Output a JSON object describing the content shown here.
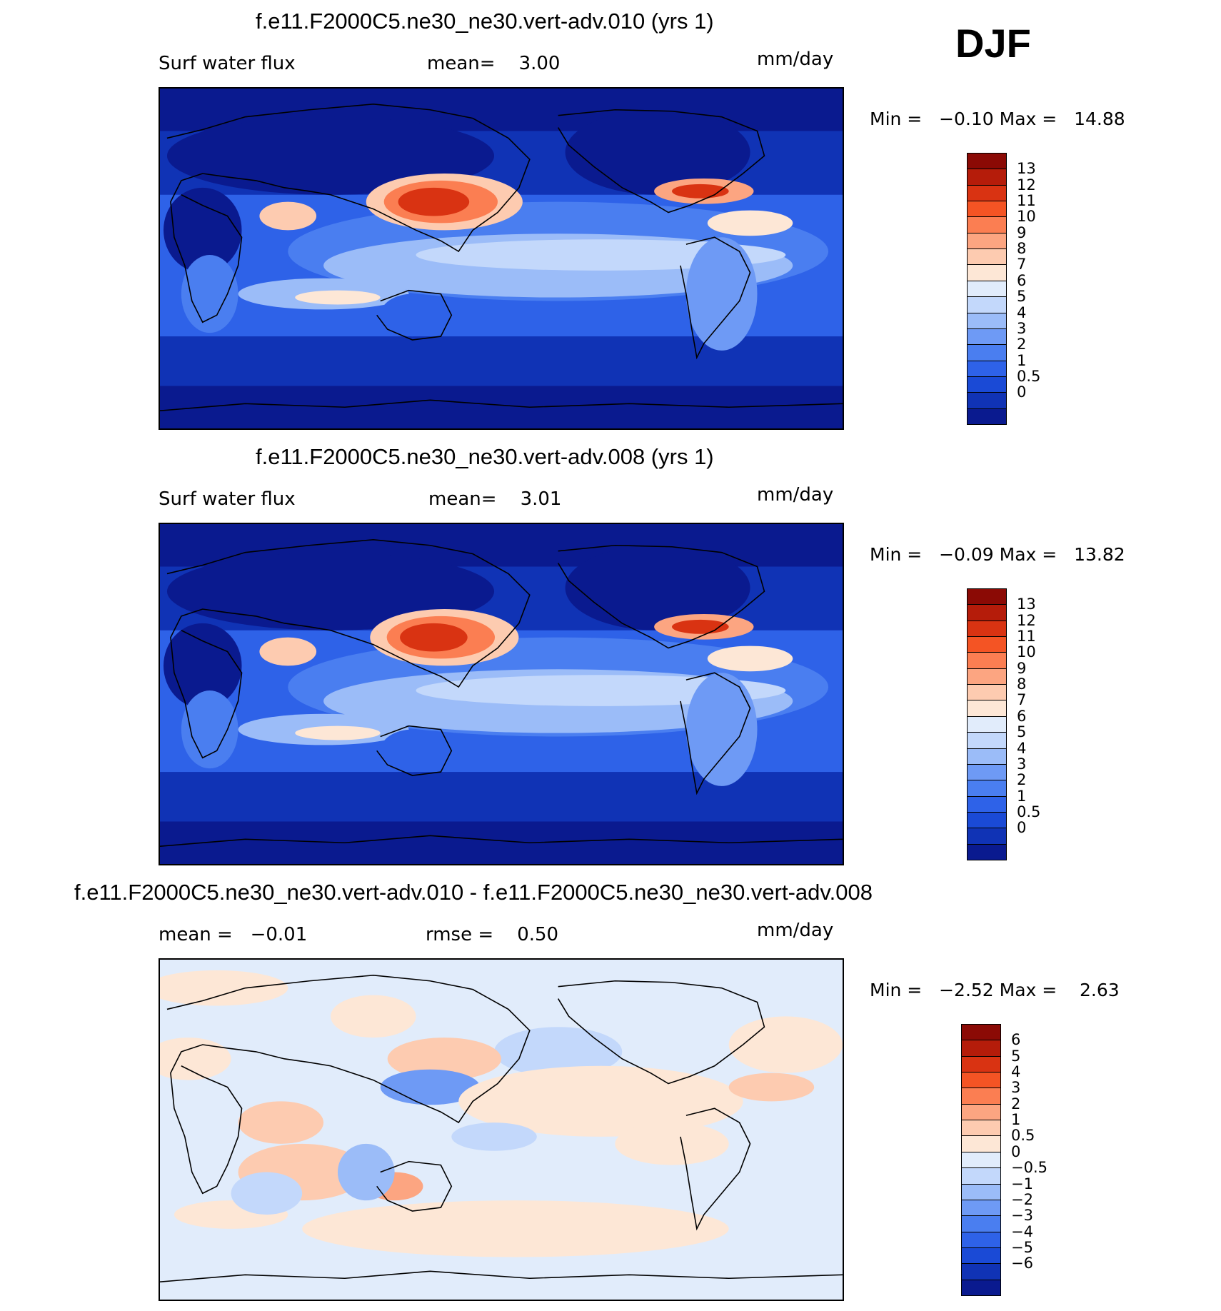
{
  "season": "DJF",
  "panels": [
    {
      "title": "f.e11.F2000C5.ne30_ne30.vert-adv.010 (yrs 1)",
      "left_text": "Surf water flux",
      "center_text": "mean=    3.00",
      "units": "mm/day",
      "minmax": "Min =   −0.10 Max =   14.88",
      "kind": "abs",
      "colorbar": {
        "colors": [
          "#0a1a8f",
          "#1033b5",
          "#1a4ad6",
          "#2e62e8",
          "#4a7ef0",
          "#6e9af5",
          "#9bbcf8",
          "#c3d8fb",
          "#e1ecfb",
          "#fde7d6",
          "#fdcbb0",
          "#fca581",
          "#fb7e52",
          "#f45424",
          "#d93312",
          "#b51c0a",
          "#8b0a05"
        ],
        "labels": [
          "13",
          "12",
          "11",
          "10",
          "9",
          "8",
          "7",
          "6",
          "5",
          "4",
          "3",
          "2",
          "1",
          "0.5",
          "0"
        ]
      }
    },
    {
      "title": "f.e11.F2000C5.ne30_ne30.vert-adv.008 (yrs 1)",
      "left_text": "Surf water flux",
      "center_text": "mean=    3.01",
      "units": "mm/day",
      "minmax": "Min =   −0.09 Max =   13.82",
      "kind": "abs",
      "colorbar": {
        "colors": [
          "#0a1a8f",
          "#1033b5",
          "#1a4ad6",
          "#2e62e8",
          "#4a7ef0",
          "#6e9af5",
          "#9bbcf8",
          "#c3d8fb",
          "#e1ecfb",
          "#fde7d6",
          "#fdcbb0",
          "#fca581",
          "#fb7e52",
          "#f45424",
          "#d93312",
          "#b51c0a",
          "#8b0a05"
        ],
        "labels": [
          "13",
          "12",
          "11",
          "10",
          "9",
          "8",
          "7",
          "6",
          "5",
          "4",
          "3",
          "2",
          "1",
          "0.5",
          "0"
        ]
      }
    },
    {
      "title": "f.e11.F2000C5.ne30_ne30.vert-adv.010 - f.e11.F2000C5.ne30_ne30.vert-adv.008",
      "left_text": "mean =   −0.01",
      "center_text": "rmse =    0.50",
      "units": "mm/day",
      "minmax": "Min =   −2.52 Max =    2.63",
      "kind": "diff",
      "colorbar": {
        "colors": [
          "#0a1a8f",
          "#1033b5",
          "#1a4ad6",
          "#2e62e8",
          "#4a7ef0",
          "#6e9af5",
          "#9bbcf8",
          "#c3d8fb",
          "#e1ecfb",
          "#fde7d6",
          "#fdcbb0",
          "#fca581",
          "#fb7e52",
          "#f45424",
          "#d93312",
          "#b51c0a",
          "#8b0a05"
        ],
        "labels": [
          "6",
          "5",
          "4",
          "3",
          "2",
          "1",
          "0.5",
          "0",
          "−0.5",
          "−1",
          "−2",
          "−3",
          "−4",
          "−5",
          "−6"
        ]
      }
    }
  ]
}
